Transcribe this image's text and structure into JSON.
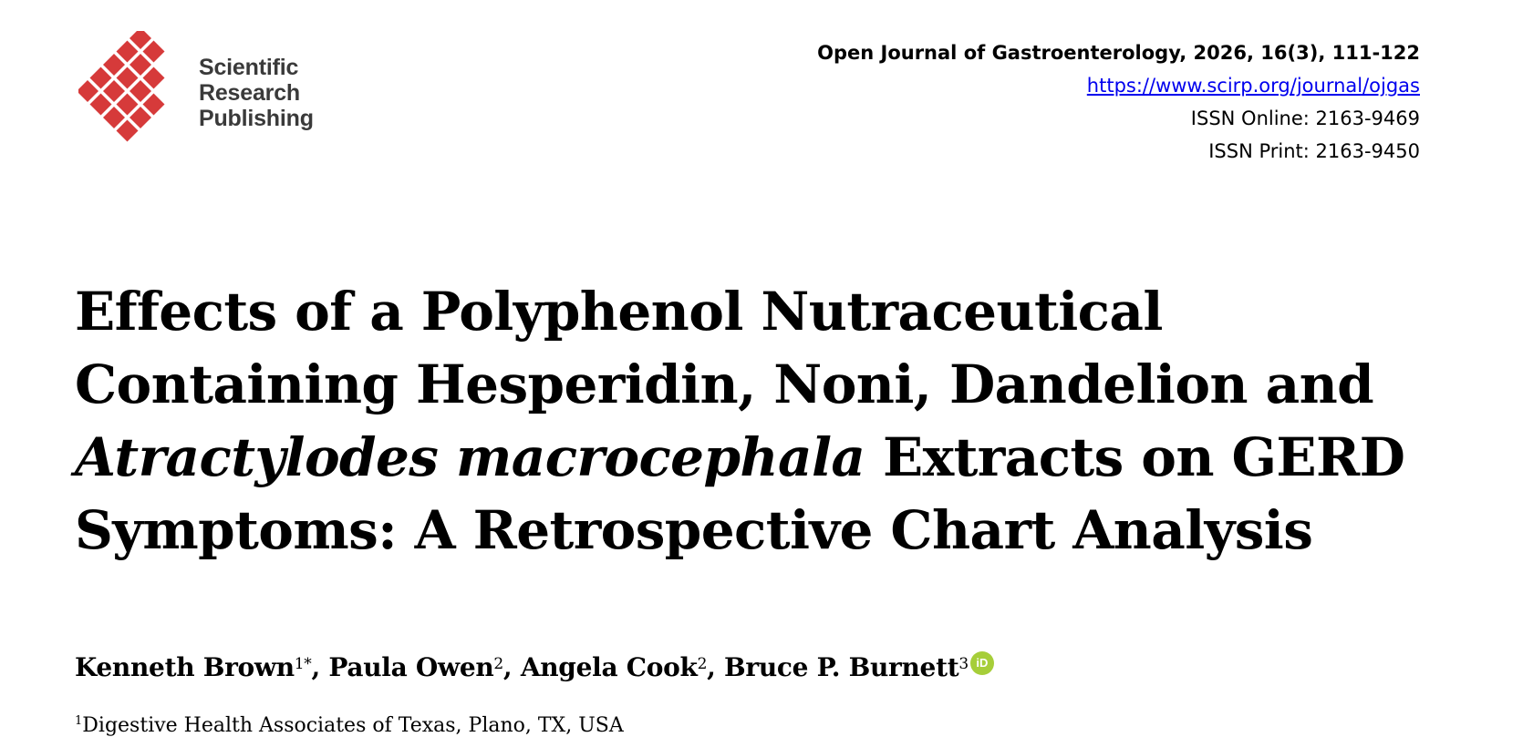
{
  "publisher": {
    "name_line1": "Scientific",
    "name_line2": "Research",
    "name_line3": "Publishing",
    "logo_color": "#d63a3a",
    "logo_icon": "diamond-grid-logo"
  },
  "journal": {
    "citation": "Open Journal of Gastroenterology, 2026, 16(3), 111-122",
    "url": "https://www.scirp.org/journal/ojgas",
    "issn_online": "ISSN Online: 2163-9469",
    "issn_print": "ISSN Print: 2163-9450"
  },
  "title": {
    "line1": "Effects of a Polyphenol Nutraceutical",
    "line2": "Containing Hesperidin, Noni, Dandelion and",
    "line3_italic": "Atractylodes macrocephala",
    "line3_rest": " Extracts on GERD",
    "line4": "Symptoms: A Retrospective Chart Analysis"
  },
  "authors": [
    {
      "name": "Kenneth Brown",
      "sup": "1*"
    },
    {
      "name": "Paula Owen",
      "sup": "2"
    },
    {
      "name": "Angela Cook",
      "sup": "2"
    },
    {
      "name": "Bruce P. Burnett",
      "sup": "3"
    }
  ],
  "author_separator": ", ",
  "orcid_label": "iD",
  "orcid_color": "#a6ce39",
  "affiliation": {
    "sup": "1",
    "text": "Digestive Health Associates of Texas, Plano, TX, USA"
  }
}
